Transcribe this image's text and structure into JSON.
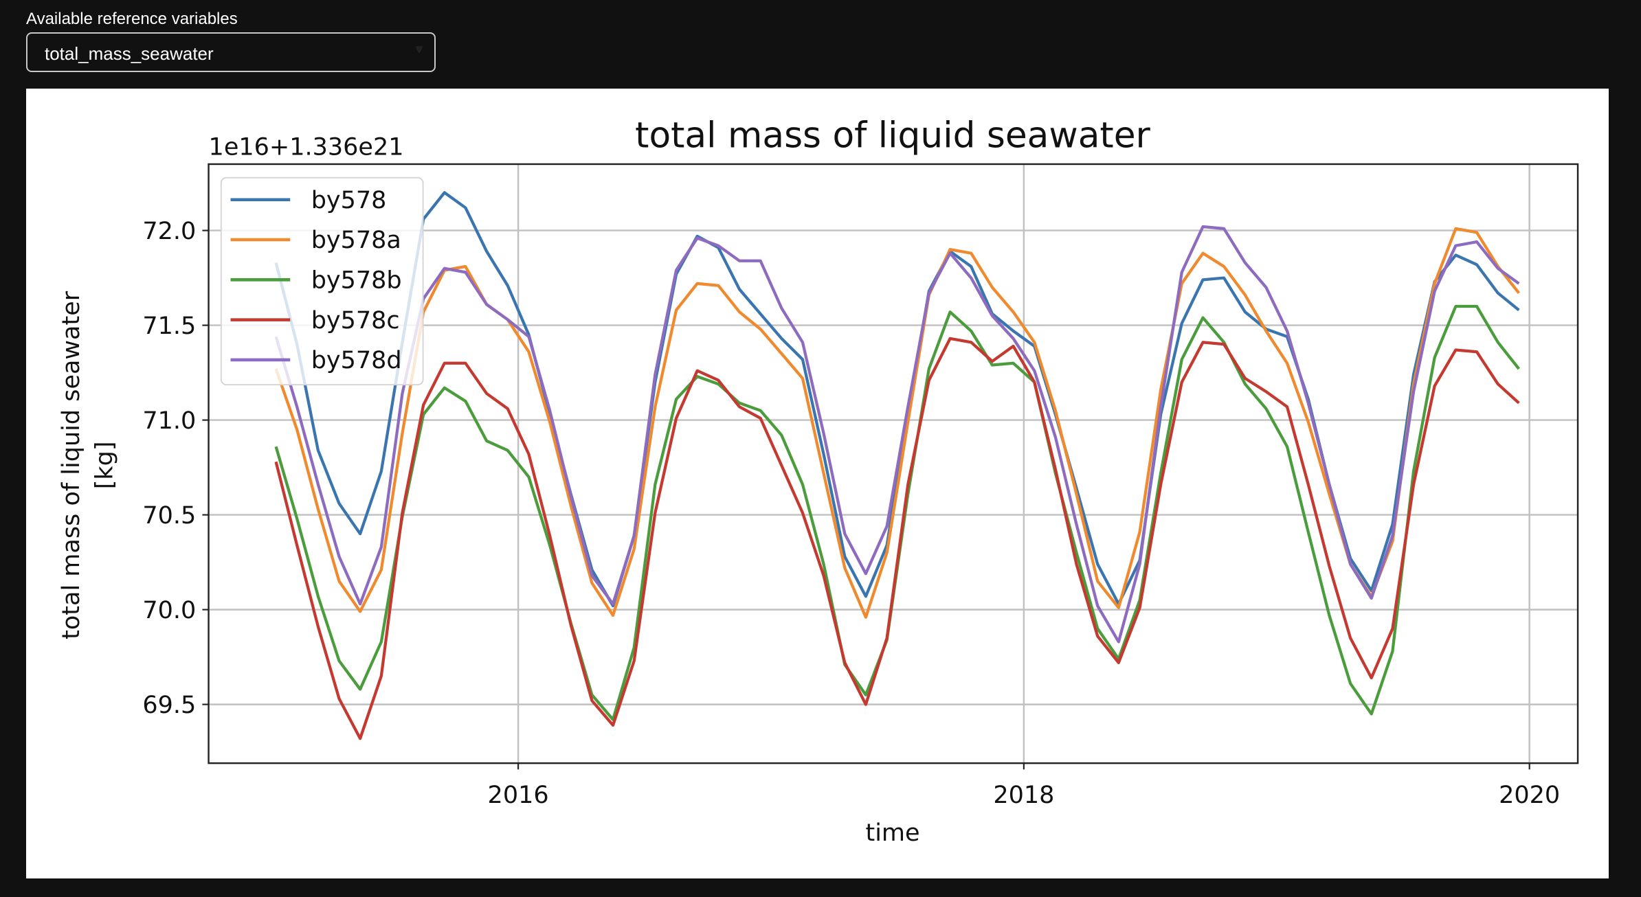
{
  "controls": {
    "label": "Available reference variables",
    "selected": "total_mass_seawater",
    "caret_icon": "triangle-down"
  },
  "chart_data": {
    "type": "line",
    "title": "total mass of liquid seawater",
    "offset_text": "1e16+1.336e21",
    "xlabel": "time",
    "ylabel": [
      "total mass of liquid seawater",
      "[kg]"
    ],
    "xlim": [
      "2014-10-11",
      "2020-03-11"
    ],
    "ylim": [
      69.19,
      72.35
    ],
    "xticks": [
      {
        "value": "2016-01-01",
        "label": "2016"
      },
      {
        "value": "2018-01-01",
        "label": "2018"
      },
      {
        "value": "2020-01-01",
        "label": "2020"
      }
    ],
    "yticks": [
      {
        "value": 69.5,
        "label": "69.5"
      },
      {
        "value": 70.0,
        "label": "70.0"
      },
      {
        "value": 70.5,
        "label": "70.5"
      },
      {
        "value": 71.0,
        "label": "71.0"
      },
      {
        "value": 71.5,
        "label": "71.5"
      },
      {
        "value": 72.0,
        "label": "72.0"
      }
    ],
    "grid": true,
    "legend_position": "upper-left",
    "x": [
      "2015-01",
      "2015-02",
      "2015-03",
      "2015-04",
      "2015-05",
      "2015-06",
      "2015-07",
      "2015-08",
      "2015-09",
      "2015-10",
      "2015-11",
      "2015-12",
      "2016-01",
      "2016-02",
      "2016-03",
      "2016-04",
      "2016-05",
      "2016-06",
      "2016-07",
      "2016-08",
      "2016-09",
      "2016-10",
      "2016-11",
      "2016-12",
      "2017-01",
      "2017-02",
      "2017-03",
      "2017-04",
      "2017-05",
      "2017-06",
      "2017-07",
      "2017-08",
      "2017-09",
      "2017-10",
      "2017-11",
      "2017-12",
      "2018-01",
      "2018-02",
      "2018-03",
      "2018-04",
      "2018-05",
      "2018-06",
      "2018-07",
      "2018-08",
      "2018-09",
      "2018-10",
      "2018-11",
      "2018-12",
      "2019-01",
      "2019-02",
      "2019-03",
      "2019-04",
      "2019-05",
      "2019-06",
      "2019-07",
      "2019-08",
      "2019-09",
      "2019-10",
      "2019-11",
      "2019-12"
    ],
    "series": [
      {
        "name": "by578",
        "color": "#3b75af",
        "values": [
          71.83,
          71.4,
          70.84,
          70.56,
          70.4,
          70.73,
          71.41,
          72.06,
          72.2,
          72.12,
          71.89,
          71.71,
          71.45,
          71.03,
          70.61,
          70.21,
          70.02,
          70.39,
          71.2,
          71.77,
          71.97,
          71.91,
          71.69,
          71.56,
          71.43,
          71.32,
          70.82,
          70.28,
          70.07,
          70.34,
          71.03,
          71.68,
          71.89,
          71.81,
          71.56,
          71.47,
          71.39,
          71.03,
          70.64,
          70.24,
          70.03,
          70.26,
          71.03,
          71.51,
          71.74,
          71.75,
          71.57,
          71.48,
          71.44,
          71.11,
          70.66,
          70.27,
          70.1,
          70.45,
          71.24,
          71.73,
          71.87,
          71.82,
          71.67,
          71.58
        ]
      },
      {
        "name": "by578a",
        "color": "#ef8a2f",
        "values": [
          71.27,
          70.95,
          70.53,
          70.15,
          69.99,
          70.21,
          70.93,
          71.57,
          71.79,
          71.81,
          71.61,
          71.53,
          71.36,
          70.99,
          70.55,
          70.14,
          69.97,
          70.32,
          71.07,
          71.58,
          71.72,
          71.71,
          71.57,
          71.48,
          71.35,
          71.22,
          70.72,
          70.22,
          69.96,
          70.3,
          70.99,
          71.66,
          71.9,
          71.88,
          71.7,
          71.57,
          71.41,
          71.05,
          70.61,
          70.15,
          70.01,
          70.41,
          71.16,
          71.72,
          71.88,
          71.81,
          71.66,
          71.47,
          71.3,
          70.99,
          70.61,
          70.24,
          70.07,
          70.36,
          71.19,
          71.72,
          72.01,
          71.99,
          71.81,
          71.67
        ]
      },
      {
        "name": "by578b",
        "color": "#4b9c3d",
        "values": [
          70.86,
          70.48,
          70.07,
          69.73,
          69.58,
          69.83,
          70.49,
          71.03,
          71.17,
          71.1,
          70.89,
          70.84,
          70.7,
          70.34,
          69.93,
          69.55,
          69.42,
          69.8,
          70.66,
          71.11,
          71.23,
          71.19,
          71.09,
          71.05,
          70.92,
          70.66,
          70.24,
          69.71,
          69.55,
          69.84,
          70.61,
          71.27,
          71.57,
          71.47,
          71.29,
          71.3,
          71.2,
          70.72,
          70.3,
          69.9,
          69.74,
          70.05,
          70.72,
          71.32,
          71.54,
          71.41,
          71.19,
          71.06,
          70.86,
          70.41,
          69.97,
          69.61,
          69.45,
          69.78,
          70.73,
          71.33,
          71.6,
          71.6,
          71.41,
          71.27
        ]
      },
      {
        "name": "by578c",
        "color": "#c43a31",
        "values": [
          70.78,
          70.34,
          69.91,
          69.53,
          69.32,
          69.65,
          70.51,
          71.08,
          71.3,
          71.3,
          71.14,
          71.06,
          70.82,
          70.39,
          69.92,
          69.52,
          69.39,
          69.73,
          70.51,
          71.01,
          71.26,
          71.21,
          71.07,
          71.01,
          70.76,
          70.51,
          70.18,
          69.72,
          69.5,
          69.85,
          70.66,
          71.21,
          71.43,
          71.41,
          71.31,
          71.39,
          71.2,
          70.74,
          70.24,
          69.86,
          69.72,
          70.01,
          70.66,
          71.2,
          71.41,
          71.4,
          71.22,
          71.15,
          71.07,
          70.66,
          70.23,
          69.85,
          69.64,
          69.9,
          70.66,
          71.18,
          71.37,
          71.36,
          71.19,
          71.09
        ]
      },
      {
        "name": "by578d",
        "color": "#8d6bbf",
        "values": [
          71.44,
          71.07,
          70.66,
          70.28,
          70.03,
          70.33,
          71.14,
          71.64,
          71.8,
          71.78,
          71.61,
          71.53,
          71.44,
          71.05,
          70.6,
          70.18,
          70.03,
          70.39,
          71.24,
          71.79,
          71.96,
          71.92,
          71.84,
          71.84,
          71.59,
          71.41,
          70.93,
          70.4,
          70.19,
          70.44,
          71.07,
          71.67,
          71.88,
          71.75,
          71.55,
          71.43,
          71.26,
          70.91,
          70.45,
          70.02,
          69.83,
          70.24,
          71.07,
          71.78,
          72.02,
          72.01,
          71.83,
          71.7,
          71.47,
          71.09,
          70.66,
          70.24,
          70.06,
          70.39,
          71.15,
          71.68,
          71.92,
          71.94,
          71.8,
          71.72
        ]
      }
    ]
  }
}
